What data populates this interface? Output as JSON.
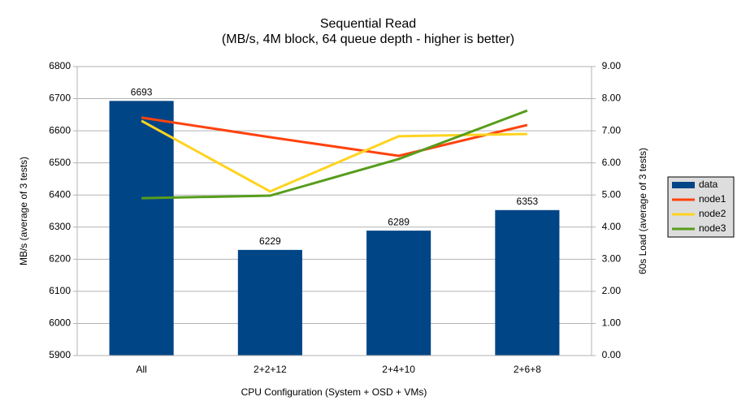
{
  "chart_data": {
    "type": "bar",
    "title": "Sequential Read",
    "subtitle": "(MB/s, 4M block, 64 queue depth - higher is better)",
    "x_label": "CPU Configuration (System + OSD + VMs)",
    "y_label": "MB/s (average of 3 tests)",
    "y2_label": "60s Load (average of 3 tests)",
    "categories": [
      "All",
      "2+2+12",
      "2+4+10",
      "2+6+8"
    ],
    "series": [
      {
        "name": "data",
        "type": "bar",
        "color": "#004586",
        "values": [
          6693,
          6229,
          6289,
          6353
        ]
      },
      {
        "name": "node1",
        "type": "line",
        "axis": "y2",
        "color": "#ff420e",
        "values": [
          7.41,
          6.8,
          6.22,
          7.18
        ]
      },
      {
        "name": "node2",
        "type": "line",
        "axis": "y2",
        "color": "#ffd320",
        "values": [
          7.31,
          5.11,
          6.83,
          6.9
        ]
      },
      {
        "name": "node3",
        "type": "line",
        "axis": "y2",
        "color": "#579d1c",
        "values": [
          4.9,
          4.98,
          6.12,
          7.63
        ]
      }
    ],
    "ylim": [
      5900,
      6800
    ],
    "yticks": [
      5900,
      6000,
      6100,
      6200,
      6300,
      6400,
      6500,
      6600,
      6700,
      6800
    ],
    "y2lim": [
      0,
      9
    ],
    "y2ticks": [
      {
        "value": 0,
        "label": "0.00"
      },
      {
        "value": 1,
        "label": "1.00"
      },
      {
        "value": 2,
        "label": "2.00"
      },
      {
        "value": 3,
        "label": "3.00"
      },
      {
        "value": 4,
        "label": "4.00"
      },
      {
        "value": 5,
        "label": "5.00"
      },
      {
        "value": 6,
        "label": "6.00"
      },
      {
        "value": 7,
        "label": "7.00"
      },
      {
        "value": 8,
        "label": "8.00"
      },
      {
        "value": 9,
        "label": "9.00"
      }
    ],
    "grid": true,
    "legend": "right"
  }
}
